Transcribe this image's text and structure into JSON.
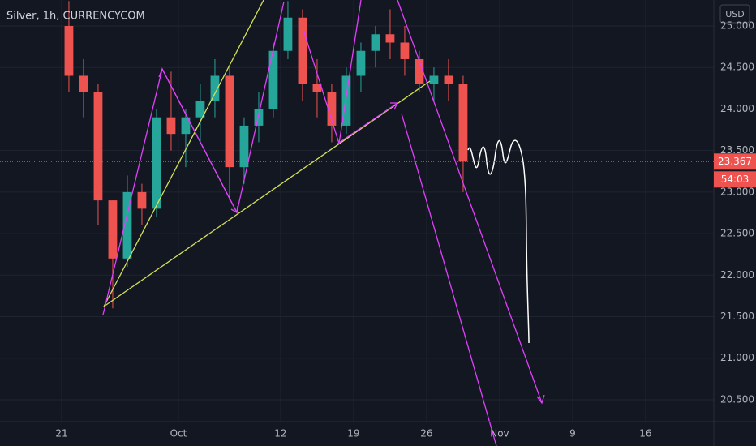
{
  "chart_data": {
    "type": "candlestick",
    "title": "Silver, 1h, CURRENCYCOM",
    "currency": "USD",
    "x": [
      0.5,
      1.5,
      2.5,
      3.5,
      4.5,
      5.5,
      6.5,
      7.5,
      8.5,
      9.5,
      10.5,
      11.5,
      12.5,
      13.5,
      14.5,
      15.5,
      16.5,
      17.5,
      18.5,
      19.5,
      20.5,
      21.5,
      22.5,
      23.5,
      24.5,
      25.5,
      26.5,
      27.5
    ],
    "open": [
      25.0,
      24.4,
      24.2,
      22.9,
      22.2,
      23.0,
      22.8,
      23.9,
      23.7,
      23.9,
      24.1,
      24.4,
      23.3,
      23.8,
      24.0,
      24.7,
      25.1,
      24.3,
      24.2,
      23.8,
      24.4,
      24.7,
      24.9,
      24.8,
      24.6,
      24.3,
      24.4,
      24.3
    ],
    "high": [
      25.3,
      24.6,
      24.3,
      22.9,
      23.2,
      23.1,
      24.0,
      24.45,
      24.0,
      24.3,
      24.6,
      24.5,
      23.9,
      24.2,
      24.8,
      25.3,
      25.2,
      24.6,
      24.3,
      24.5,
      24.8,
      25.0,
      25.2,
      25.0,
      24.7,
      24.5,
      24.6,
      24.4
    ],
    "low": [
      24.2,
      23.9,
      22.6,
      21.6,
      22.1,
      22.6,
      22.7,
      23.5,
      23.3,
      23.6,
      23.9,
      22.9,
      23.1,
      23.6,
      23.9,
      24.6,
      24.1,
      23.9,
      23.6,
      23.7,
      24.2,
      24.5,
      24.6,
      24.4,
      24.2,
      24.1,
      24.1,
      23.0
    ],
    "close": [
      24.4,
      24.2,
      22.9,
      22.2,
      23.0,
      22.8,
      23.9,
      23.7,
      23.9,
      24.1,
      24.4,
      23.3,
      23.8,
      24.0,
      24.7,
      25.1,
      24.3,
      24.2,
      23.8,
      24.4,
      24.7,
      24.9,
      24.8,
      24.6,
      24.3,
      24.4,
      24.3,
      23.367
    ],
    "up_color": "#26a69a",
    "down_color": "#ef5350",
    "xlim": [
      -4.22,
      44.67
    ],
    "xticks": [
      {
        "value": 0,
        "label": "21"
      },
      {
        "value": 8,
        "label": "Oct"
      },
      {
        "value": 15,
        "label": "12"
      },
      {
        "value": 20,
        "label": "19"
      },
      {
        "value": 25,
        "label": "26"
      },
      {
        "value": 30,
        "label": "Nov"
      },
      {
        "value": 35,
        "label": "9"
      },
      {
        "value": 40,
        "label": "16"
      }
    ],
    "ylim": [
      20.236,
      25.3125
    ],
    "yticks": [
      {
        "value": 20.5,
        "label": "20.500"
      },
      {
        "value": 21,
        "label": "21.000"
      },
      {
        "value": 21.5,
        "label": "21.500"
      },
      {
        "value": 22,
        "label": "22.000"
      },
      {
        "value": 22.5,
        "label": "22.500"
      },
      {
        "value": 23,
        "label": "23.000"
      },
      {
        "value": 23.5,
        "label": "23.500"
      },
      {
        "value": 24,
        "label": "24.000"
      },
      {
        "value": 24.5,
        "label": "24.500"
      },
      {
        "value": 25,
        "label": "25.000"
      }
    ],
    "grid": true,
    "last_price": 23.367,
    "countdown": "54:03"
  }
}
